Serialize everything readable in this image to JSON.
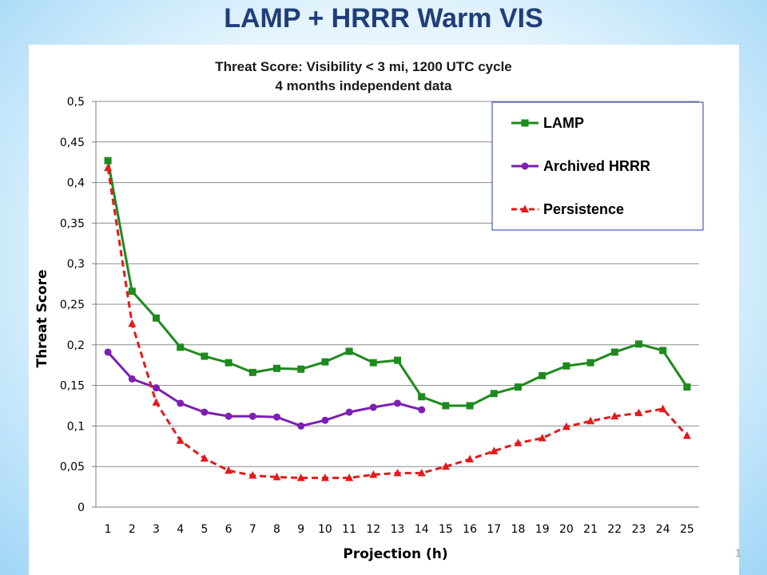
{
  "slide": {
    "title": "LAMP + HRRR Warm VIS",
    "page_number": "1"
  },
  "chart_data": {
    "type": "line",
    "title": "Threat Score: Visibility < 3 mi, 1200 UTC cycle",
    "subtitle": "4 months independent data",
    "xlabel": "Projection (h)",
    "ylabel": "Threat Score",
    "x": [
      1,
      2,
      3,
      4,
      5,
      6,
      7,
      8,
      9,
      10,
      11,
      12,
      13,
      14,
      15,
      16,
      17,
      18,
      19,
      20,
      21,
      22,
      23,
      24,
      25
    ],
    "xlim": [
      1,
      25
    ],
    "ylim": [
      0,
      0.5
    ],
    "y_ticks": [
      "0",
      "0,05",
      "0,1",
      "0,15",
      "0,2",
      "0,25",
      "0,3",
      "0,35",
      "0,4",
      "0,45",
      "0,5"
    ],
    "grid": true,
    "legend_placement": "top-right",
    "series": [
      {
        "name": "LAMP",
        "color": "#1e8a1e",
        "marker": "square",
        "dash": "solid",
        "values": [
          0.427,
          0.266,
          0.233,
          0.197,
          0.186,
          0.178,
          0.166,
          0.171,
          0.17,
          0.179,
          0.192,
          0.178,
          0.181,
          0.136,
          0.125,
          0.125,
          0.14,
          0.148,
          0.162,
          0.174,
          0.178,
          0.191,
          0.201,
          0.193,
          0.148
        ]
      },
      {
        "name": "Archived HRRR",
        "color": "#7b1fb4",
        "marker": "circle",
        "dash": "solid",
        "values": [
          0.191,
          0.158,
          0.147,
          0.128,
          0.117,
          0.112,
          0.112,
          0.111,
          0.1,
          0.107,
          0.117,
          0.123,
          0.128,
          0.12,
          null,
          null,
          null,
          null,
          null,
          null,
          null,
          null,
          null,
          null,
          null
        ]
      },
      {
        "name": "Persistence",
        "color": "#e31a1c",
        "marker": "triangle",
        "dash": "dashed",
        "values": [
          0.418,
          0.226,
          0.129,
          0.082,
          0.06,
          0.045,
          0.039,
          0.037,
          0.036,
          0.036,
          0.036,
          0.04,
          0.042,
          0.042,
          0.05,
          0.059,
          0.069,
          0.079,
          0.085,
          0.099,
          0.106,
          0.112,
          0.116,
          0.121,
          0.088
        ]
      }
    ]
  }
}
